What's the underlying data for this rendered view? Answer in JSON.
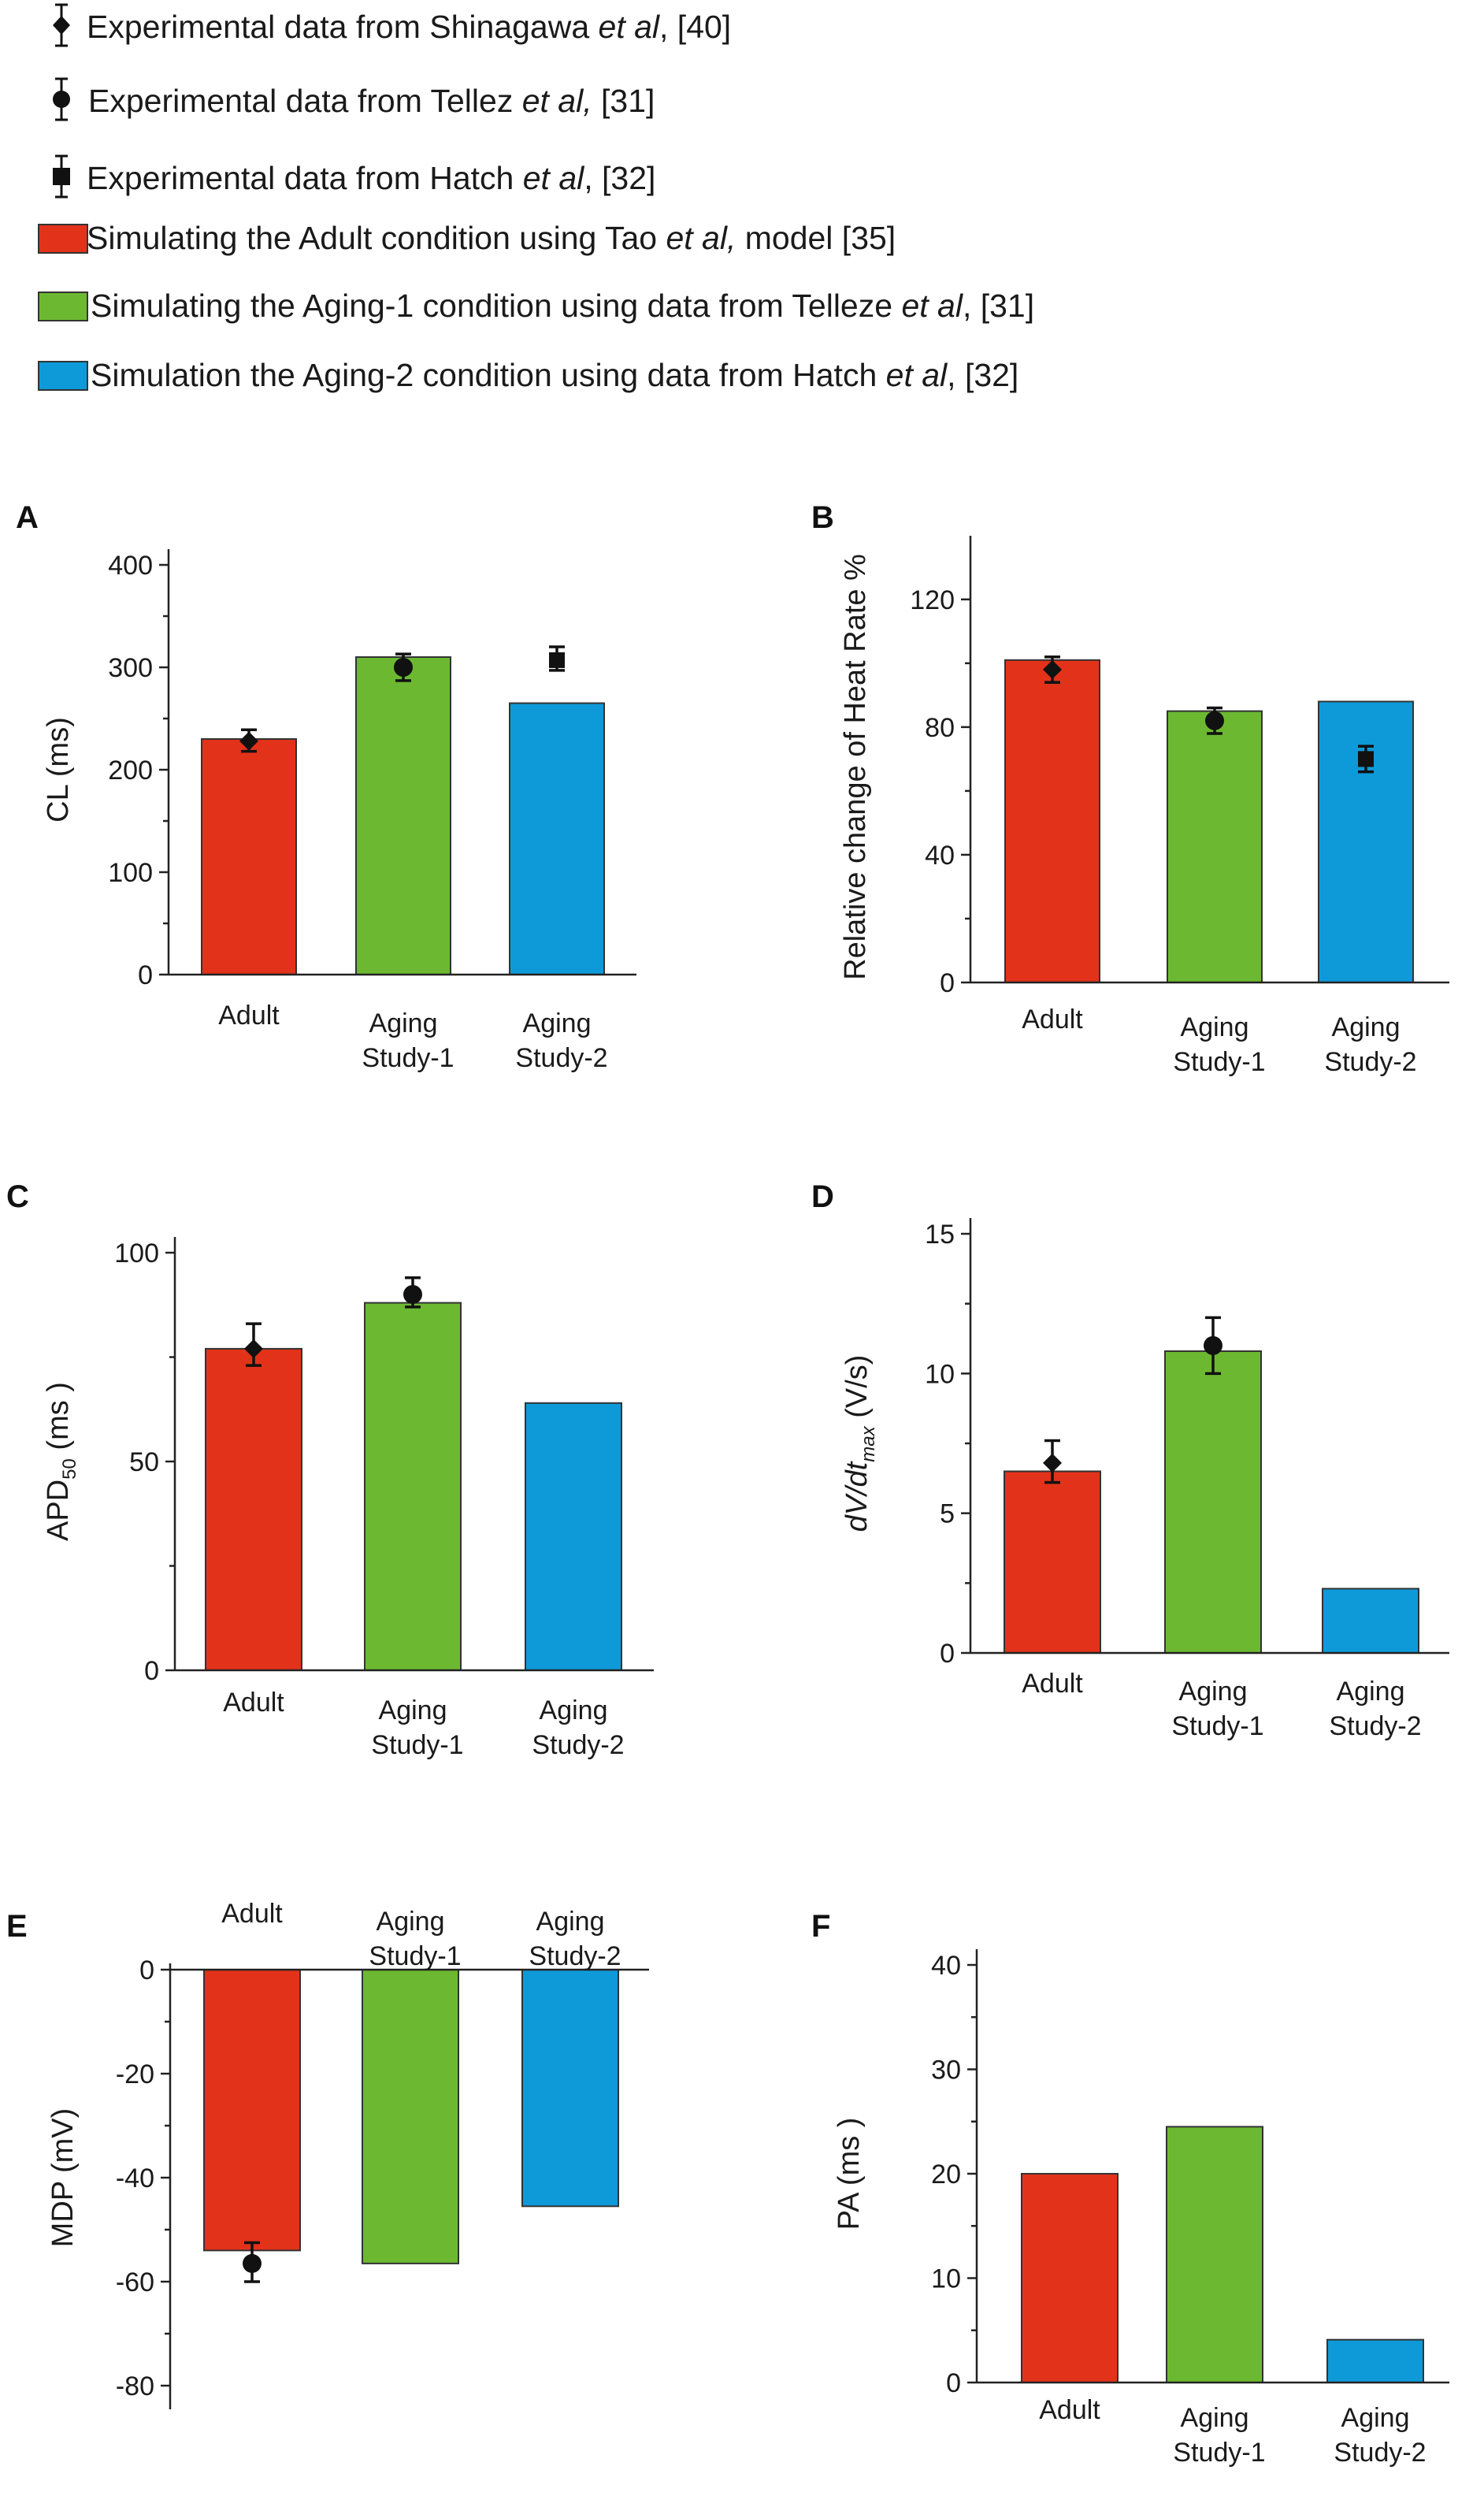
{
  "colors": {
    "adult": "#e2331a",
    "aging1": "#6cb931",
    "aging2": "#0e9ad9",
    "marker": "#111111",
    "axis": "#222222"
  },
  "legend": [
    {
      "symbol": "diamond-icon",
      "pre": "Experimental data from Shinagawa ",
      "em": "et al",
      "post": ", [40]"
    },
    {
      "symbol": "circle-icon",
      "pre": "Experimental data from Tellez ",
      "em": "et al,",
      "post": " [31]"
    },
    {
      "symbol": "square-icon",
      "pre": "Experimental data from Hatch ",
      "em": "et al",
      "post": ", [32]"
    },
    {
      "symbol": "adult-swatch",
      "pre": "Simulating the Adult condition using Tao ",
      "em": "et al,",
      "post": " model [35]"
    },
    {
      "symbol": "aging1-swatch",
      "pre": "Simulating the Aging-1 condition using data from Telleze ",
      "em": "et al",
      "post": ", [31]"
    },
    {
      "symbol": "aging2-swatch",
      "pre": "Simulation the Aging-2 condition using data from Hatch ",
      "em": "et al",
      "post": ", [32]"
    }
  ],
  "chart_data": [
    {
      "id": "A",
      "type": "bar",
      "label": "A",
      "ylabel": "CL (ms)",
      "ylim": [
        0,
        400
      ],
      "yticks": [
        0,
        100,
        200,
        300,
        400
      ],
      "categories": [
        [
          "Adult"
        ],
        [
          "Aging",
          "Study-1"
        ],
        [
          "Aging",
          "Study-2"
        ]
      ],
      "category_labels_position": "bottom",
      "values": [
        230,
        310,
        265
      ],
      "experimental": [
        {
          "category": 0,
          "marker": "diamond",
          "value": 228,
          "err_low": 218,
          "err_high": 239
        },
        {
          "category": 1,
          "marker": "circle",
          "value": 300,
          "err_low": 287,
          "err_high": 313
        },
        {
          "category": 2,
          "marker": "square",
          "value": 307,
          "err_low": 297,
          "err_high": 320
        }
      ]
    },
    {
      "id": "B",
      "type": "bar",
      "label": "B",
      "ylabel": "Relative change of Heat Rate %",
      "ylim": [
        0,
        135
      ],
      "yticks": [
        0,
        40,
        80,
        120
      ],
      "categories": [
        [
          "Adult"
        ],
        [
          "Aging",
          "Study-1"
        ],
        [
          "Aging",
          "Study-2"
        ]
      ],
      "category_labels_position": "bottom",
      "values": [
        101,
        85,
        88
      ],
      "experimental": [
        {
          "category": 0,
          "marker": "diamond",
          "value": 98,
          "err_low": 94,
          "err_high": 102
        },
        {
          "category": 1,
          "marker": "circle",
          "value": 82,
          "err_low": 78,
          "err_high": 86
        },
        {
          "category": 2,
          "marker": "square",
          "value": 70,
          "err_low": 66,
          "err_high": 74
        }
      ]
    },
    {
      "id": "C",
      "type": "bar",
      "label": "C",
      "ylabel": "APD",
      "ylabel_sub": "50",
      "ylabel_post": " (ms )",
      "ylim": [
        0,
        100
      ],
      "yticks": [
        0,
        50,
        100
      ],
      "categories": [
        [
          "Adult"
        ],
        [
          "Aging",
          "Study-1"
        ],
        [
          "Aging",
          "Study-2"
        ]
      ],
      "category_labels_position": "bottom",
      "values": [
        77,
        88,
        64
      ],
      "experimental": [
        {
          "category": 0,
          "marker": "diamond",
          "value": 77,
          "err_low": 73,
          "err_high": 83
        },
        {
          "category": 1,
          "marker": "circle",
          "value": 90,
          "err_low": 87,
          "err_high": 94
        }
      ]
    },
    {
      "id": "D",
      "type": "bar",
      "label": "D",
      "ylabel": "dV/dt",
      "ylabel_sub": "max",
      "ylabel_post": "   (V/s)",
      "ylim": [
        0,
        15
      ],
      "yticks": [
        0,
        5,
        10,
        15
      ],
      "categories": [
        [
          "Adult"
        ],
        [
          "Aging",
          "Study-1"
        ],
        [
          "Aging",
          "Study-2"
        ]
      ],
      "category_labels_position": "bottom",
      "values": [
        6.5,
        10.8,
        2.3
      ],
      "experimental": [
        {
          "category": 0,
          "marker": "diamond",
          "value": 6.8,
          "err_low": 6.1,
          "err_high": 7.6
        },
        {
          "category": 1,
          "marker": "circle",
          "value": 11.0,
          "err_low": 10.0,
          "err_high": 12.0
        }
      ]
    },
    {
      "id": "E",
      "type": "bar",
      "label": "E",
      "ylabel": "MDP (mV)",
      "ylim": [
        -80,
        0
      ],
      "yticks": [
        0,
        -20,
        -40,
        -60,
        -80
      ],
      "categories": [
        [
          "Adult"
        ],
        [
          "Aging",
          "Study-1"
        ],
        [
          "Aging",
          "Study-2"
        ]
      ],
      "category_labels_position": "top",
      "values": [
        -54,
        -56.5,
        -45.5
      ],
      "experimental": [
        {
          "category": 0,
          "marker": "circle",
          "value": -56.5,
          "err_low": -60,
          "err_high": -52.5
        }
      ]
    },
    {
      "id": "F",
      "type": "bar",
      "label": "F",
      "ylabel": "PA (ms )",
      "ylim": [
        0,
        40
      ],
      "yticks": [
        0,
        10,
        20,
        30,
        40
      ],
      "categories": [
        [
          "Adult"
        ],
        [
          "Aging",
          "Study-1"
        ],
        [
          "Aging",
          "Study-2"
        ]
      ],
      "category_labels_position": "bottom",
      "values": [
        20,
        24.5,
        4.1
      ],
      "experimental": []
    }
  ]
}
